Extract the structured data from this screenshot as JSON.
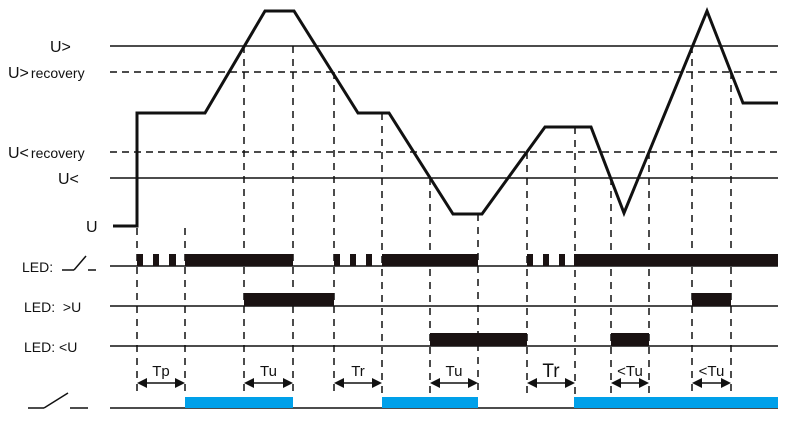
{
  "levels": {
    "u_over": "U>",
    "u_over_recovery_symbol": "U>",
    "u_under_recovery_symbol": "U<",
    "recovery": "recovery",
    "u_under": "U<",
    "u": "U"
  },
  "rows": {
    "led_relay": "LED:",
    "led_over": "LED:  >U",
    "led_under": "LED: <U"
  },
  "intervals": [
    "Tp",
    "Tu",
    "Tr",
    "Tu",
    "Tr",
    "<Tu",
    "<Tu"
  ],
  "colors": {
    "relay_on": "#00a0e9",
    "line": "#111111",
    "led_on": "#1a1212"
  }
}
